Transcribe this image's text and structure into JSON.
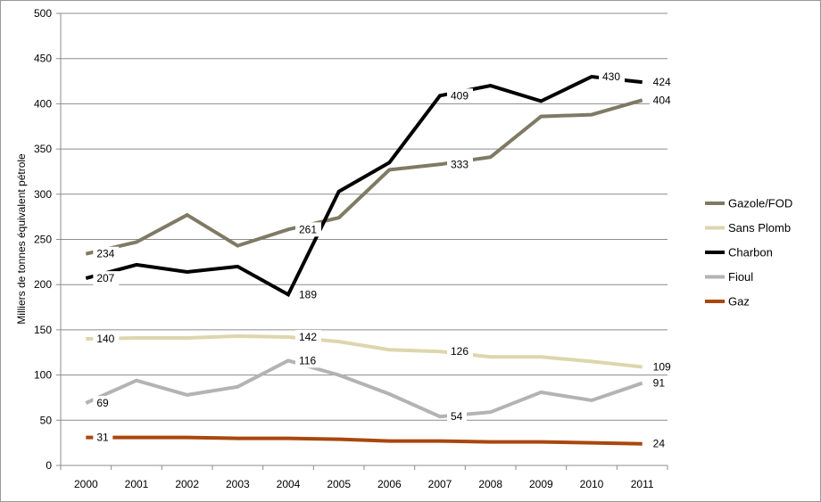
{
  "chart_data": {
    "type": "line",
    "title": "",
    "xlabel": "",
    "ylabel": "Milliers de tonnes équivalent pétrole",
    "ylim": [
      0,
      500
    ],
    "yticks": [
      0,
      50,
      100,
      150,
      200,
      250,
      300,
      350,
      400,
      450,
      500
    ],
    "categories": [
      "2000",
      "2001",
      "2002",
      "2003",
      "2004",
      "2005",
      "2006",
      "2007",
      "2008",
      "2009",
      "2010",
      "2011"
    ],
    "grid": "horizontal",
    "legend_position": "right",
    "series": [
      {
        "name": "Gazole/FOD",
        "color": "#7f7a64",
        "values": [
          234,
          247,
          277,
          243,
          261,
          274,
          327,
          333,
          341,
          386,
          388,
          404
        ],
        "labels": [
          {
            "index": 0,
            "text": "234"
          },
          {
            "index": 4,
            "text": "261"
          },
          {
            "index": 7,
            "text": "333"
          },
          {
            "index": 11,
            "text": "404"
          }
        ]
      },
      {
        "name": "Sans Plomb",
        "color": "#ddd6ad",
        "values": [
          140,
          141,
          141,
          143,
          142,
          137,
          128,
          126,
          120,
          120,
          115,
          109
        ],
        "labels": [
          {
            "index": 0,
            "text": "140"
          },
          {
            "index": 4,
            "text": "142"
          },
          {
            "index": 7,
            "text": "126"
          },
          {
            "index": 11,
            "text": "109"
          }
        ]
      },
      {
        "name": "Charbon",
        "color": "#000000",
        "values": [
          207,
          222,
          214,
          220,
          189,
          303,
          335,
          409,
          420,
          403,
          430,
          424
        ],
        "labels": [
          {
            "index": 0,
            "text": "207"
          },
          {
            "index": 4,
            "text": "189"
          },
          {
            "index": 7,
            "text": "409"
          },
          {
            "index": 10,
            "text": "430"
          },
          {
            "index": 11,
            "text": "424"
          }
        ]
      },
      {
        "name": "Fioul",
        "color": "#b3b3b3",
        "values": [
          69,
          94,
          78,
          87,
          116,
          100,
          79,
          54,
          59,
          81,
          72,
          91
        ],
        "labels": [
          {
            "index": 0,
            "text": "69"
          },
          {
            "index": 4,
            "text": "116"
          },
          {
            "index": 7,
            "text": "54"
          },
          {
            "index": 11,
            "text": "91"
          }
        ]
      },
      {
        "name": "Gaz",
        "color": "#a9470e",
        "values": [
          31,
          31,
          31,
          30,
          30,
          29,
          27,
          27,
          26,
          26,
          25,
          24
        ],
        "labels": [
          {
            "index": 0,
            "text": "31"
          },
          {
            "index": 11,
            "text": "24"
          }
        ]
      }
    ]
  }
}
